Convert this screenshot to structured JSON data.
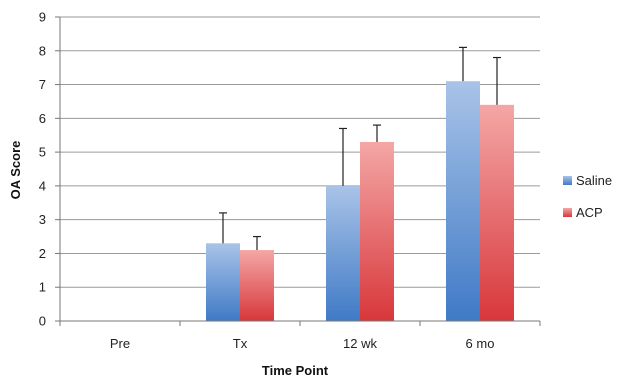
{
  "chart_data": {
    "type": "bar",
    "title": "",
    "xlabel": "Time Point",
    "ylabel": "OA Score",
    "categories": [
      "Pre",
      "Tx",
      "12 wk",
      "6 mo"
    ],
    "ylim": [
      0,
      9
    ],
    "yticks": [
      "0",
      "1",
      "2",
      "3",
      "4",
      "5",
      "6",
      "7",
      "8",
      "9"
    ],
    "grid": "horizontal",
    "legend_position": "right",
    "series": [
      {
        "name": "Saline",
        "color_top": "#a9c3e8",
        "color_bottom": "#3f7ac6",
        "values": [
          0,
          2.3,
          4.0,
          7.1
        ],
        "errors": [
          0,
          0.9,
          1.7,
          1.0
        ]
      },
      {
        "name": "ACP",
        "color_top": "#f4a7a6",
        "color_bottom": "#d8373b",
        "values": [
          0,
          2.1,
          5.3,
          6.4
        ],
        "errors": [
          0,
          0.4,
          0.5,
          1.4
        ]
      }
    ]
  }
}
